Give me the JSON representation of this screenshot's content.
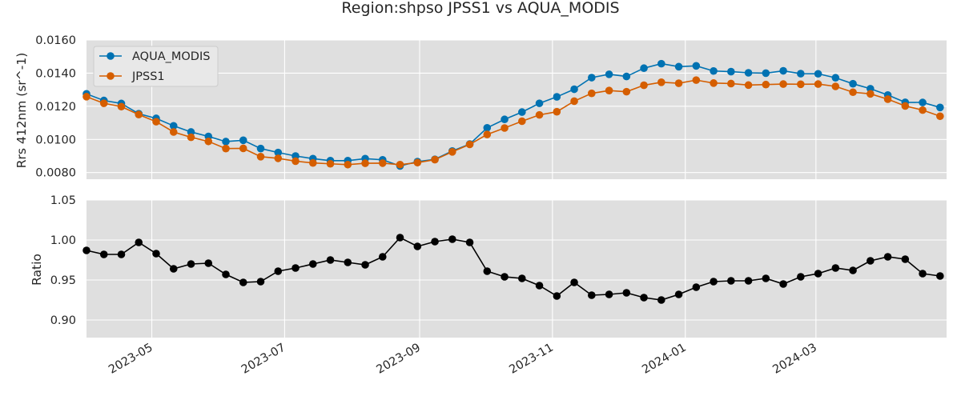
{
  "chart_data": {
    "title": "Region:shpso JPSS1 vs AQUA_MODIS",
    "x_axis": {
      "type": "date",
      "range": [
        "2023-04-01",
        "2024-04-30"
      ],
      "ticks": [
        "2023-05-01",
        "2023-07-01",
        "2023-09-01",
        "2023-11-01",
        "2024-01-01",
        "2024-03-01"
      ],
      "tick_labels": [
        "2023-05",
        "2023-07",
        "2023-09",
        "2023-11",
        "2024-01",
        "2024-03"
      ]
    },
    "dates": [
      "2023-04-01",
      "2023-04-09",
      "2023-04-17",
      "2023-04-25",
      "2023-05-03",
      "2023-05-11",
      "2023-05-19",
      "2023-05-27",
      "2023-06-04",
      "2023-06-12",
      "2023-06-20",
      "2023-06-28",
      "2023-07-06",
      "2023-07-14",
      "2023-07-22",
      "2023-07-30",
      "2023-08-07",
      "2023-08-15",
      "2023-08-23",
      "2023-08-31",
      "2023-09-08",
      "2023-09-16",
      "2023-09-24",
      "2023-10-02",
      "2023-10-10",
      "2023-10-18",
      "2023-10-26",
      "2023-11-03",
      "2023-11-11",
      "2023-11-19",
      "2023-11-27",
      "2023-12-05",
      "2023-12-13",
      "2023-12-21",
      "2023-12-29",
      "2024-01-06",
      "2024-01-14",
      "2024-01-22",
      "2024-01-30",
      "2024-02-07",
      "2024-02-15",
      "2024-02-23",
      "2024-03-02",
      "2024-03-10",
      "2024-03-18",
      "2024-03-26",
      "2024-04-03",
      "2024-04-11",
      "2024-04-19",
      "2024-04-27"
    ],
    "charts": [
      {
        "type": "line",
        "ylabel": "Rrs 412nm (sr^-1)",
        "ylim": [
          0.0076,
          0.016
        ],
        "yticks": [
          0.008,
          0.01,
          0.012,
          0.014,
          0.016
        ],
        "ytick_labels": [
          "0.0080",
          "0.0100",
          "0.0120",
          "0.0140",
          "0.0160"
        ],
        "legend": "top-left",
        "grid": true,
        "series": [
          {
            "name": "AQUA_MODIS",
            "color": "#0072b2",
            "values": [
              0.01275,
              0.01235,
              0.01217,
              0.01155,
              0.01127,
              0.01082,
              0.01045,
              0.01018,
              0.00987,
              0.00995,
              0.00945,
              0.00921,
              0.009,
              0.00884,
              0.00872,
              0.00872,
              0.00884,
              0.00877,
              0.0084,
              0.00866,
              0.0088,
              0.0093,
              0.00972,
              0.0107,
              0.01121,
              0.01165,
              0.01218,
              0.01257,
              0.01303,
              0.01373,
              0.01393,
              0.0138,
              0.0143,
              0.01457,
              0.01439,
              0.01444,
              0.01413,
              0.01409,
              0.01402,
              0.014,
              0.01414,
              0.01397,
              0.01396,
              0.01372,
              0.01336,
              0.01306,
              0.01268,
              0.01224,
              0.01223,
              0.01193
            ]
          },
          {
            "name": "JPSS1",
            "color": "#d55e00",
            "values": [
              0.01258,
              0.01218,
              0.01198,
              0.0115,
              0.01107,
              0.01045,
              0.01013,
              0.00988,
              0.00945,
              0.00946,
              0.00896,
              0.00886,
              0.00869,
              0.00858,
              0.00853,
              0.00848,
              0.00856,
              0.00857,
              0.00848,
              0.0086,
              0.00878,
              0.00925,
              0.0097,
              0.0103,
              0.01069,
              0.0111,
              0.01148,
              0.01167,
              0.01231,
              0.01278,
              0.01295,
              0.01288,
              0.01327,
              0.01345,
              0.01339,
              0.01358,
              0.0134,
              0.01337,
              0.01328,
              0.01331,
              0.01334,
              0.01333,
              0.01334,
              0.0132,
              0.01285,
              0.01275,
              0.01243,
              0.01202,
              0.01177,
              0.0114
            ]
          }
        ]
      },
      {
        "type": "line",
        "ylabel": "Ratio",
        "ylim": [
          0.878,
          1.05
        ],
        "yticks": [
          0.9,
          0.95,
          1.0,
          1.05
        ],
        "ytick_labels": [
          "0.90",
          "0.95",
          "1.00",
          "1.05"
        ],
        "grid": true,
        "series": [
          {
            "color": "#000000",
            "values": [
              0.987,
              0.982,
              0.982,
              0.997,
              0.983,
              0.964,
              0.97,
              0.971,
              0.957,
              0.947,
              0.948,
              0.961,
              0.965,
              0.97,
              0.975,
              0.972,
              0.969,
              0.979,
              1.003,
              0.992,
              0.998,
              1.001,
              0.997,
              0.961,
              0.954,
              0.952,
              0.943,
              0.93,
              0.947,
              0.931,
              0.932,
              0.934,
              0.928,
              0.925,
              0.932,
              0.941,
              0.948,
              0.949,
              0.949,
              0.952,
              0.945,
              0.954,
              0.958,
              0.965,
              0.962,
              0.974,
              0.979,
              0.976,
              0.958,
              0.955
            ]
          }
        ]
      }
    ]
  }
}
